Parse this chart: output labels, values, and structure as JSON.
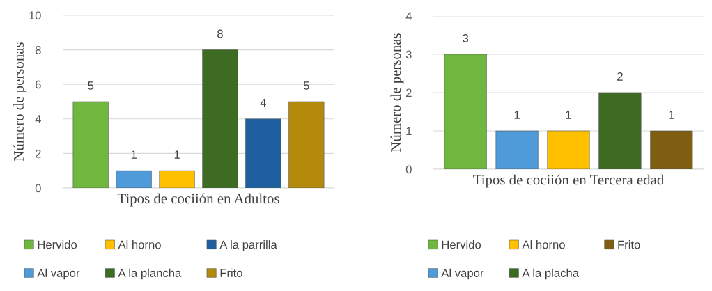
{
  "chart_data": [
    {
      "type": "bar",
      "xlabel": "Tipos de cociión en Adultos",
      "ylabel": "Número de personas",
      "categories": [
        null
      ],
      "ylim": [
        0,
        10
      ],
      "yticks": [
        0,
        2,
        4,
        6,
        8,
        10
      ],
      "grid": "y",
      "legend": "bottom",
      "data_labels": true,
      "series": [
        {
          "name": "Hervido",
          "color": "#6fb73e",
          "values": [
            5
          ]
        },
        {
          "name": "Al vapor",
          "color": "#4f9ad8",
          "values": [
            1
          ]
        },
        {
          "name": "Al horno",
          "color": "#ffc000",
          "values": [
            1
          ]
        },
        {
          "name": "A la plancha",
          "color": "#3e6b22",
          "values": [
            8
          ]
        },
        {
          "name": "A la parrilla",
          "color": "#1d5f9f",
          "values": [
            4
          ]
        },
        {
          "name": "Frito",
          "color": "#b38a0c",
          "values": [
            5
          ]
        }
      ]
    },
    {
      "type": "bar",
      "xlabel": "Tipos de cociión en Tercera edad",
      "ylabel": "Número de personas",
      "categories": [
        null
      ],
      "ylim": [
        0,
        4
      ],
      "yticks": [
        0,
        1,
        2,
        3,
        4
      ],
      "grid": "y",
      "legend": "bottom",
      "data_labels": true,
      "series": [
        {
          "name": "Hervido",
          "color": "#6fb73e",
          "values": [
            3
          ]
        },
        {
          "name": "Al vapor",
          "color": "#4f9ad8",
          "values": [
            1
          ]
        },
        {
          "name": "Al horno",
          "color": "#ffc000",
          "values": [
            1
          ]
        },
        {
          "name": "A la placha",
          "color": "#3e6b22",
          "values": [
            2
          ]
        },
        {
          "name": "Frito",
          "color": "#7f5e12",
          "values": [
            1
          ]
        }
      ]
    }
  ]
}
